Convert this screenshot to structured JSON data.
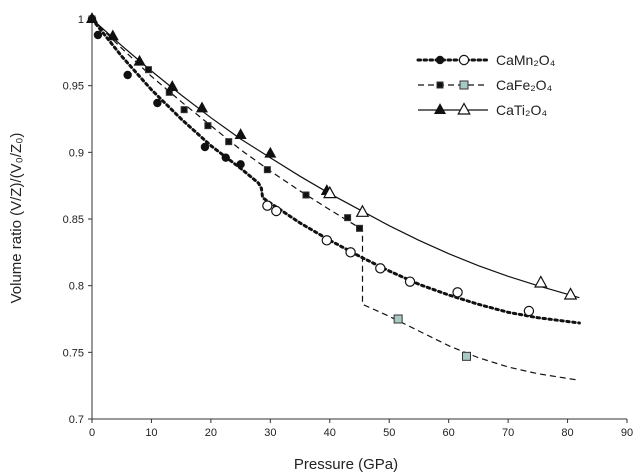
{
  "chart_data": {
    "type": "scatter",
    "title": "",
    "xlabel": "Pressure  (GPa)",
    "ylabel": "Volume ratio  (V/Z)/(V₀/Z₀)",
    "xlim": [
      0,
      90
    ],
    "ylim": [
      0.7,
      1.0
    ],
    "xticks": [
      0,
      10,
      20,
      30,
      40,
      50,
      60,
      70,
      80,
      90
    ],
    "yticks": [
      0.7,
      0.75,
      0.8,
      0.85,
      0.9,
      0.95,
      1.0
    ],
    "xtick_labels": [
      "0",
      "10",
      "20",
      "30",
      "40",
      "50",
      "60",
      "70",
      "80",
      "90"
    ],
    "ytick_labels": [
      "0.7",
      "0.75",
      "0.8",
      "0.85",
      "0.9",
      "0.95",
      "1"
    ],
    "grid": false,
    "legend_position": "top-right",
    "series": [
      {
        "name": "CaMn₂O₄",
        "color": "#111111",
        "fit_style": "dotted-thick",
        "points_low_phase": [
          [
            0,
            1.0
          ],
          [
            1,
            0.988
          ],
          [
            6,
            0.958
          ],
          [
            11,
            0.937
          ],
          [
            19,
            0.904
          ],
          [
            22.5,
            0.896
          ],
          [
            25,
            0.891
          ]
        ],
        "points_high_phase": [
          [
            29.5,
            0.86
          ],
          [
            31,
            0.856
          ],
          [
            39.5,
            0.834
          ],
          [
            43.5,
            0.825
          ],
          [
            48.5,
            0.813
          ],
          [
            53.5,
            0.803
          ],
          [
            61.5,
            0.795
          ],
          [
            73.5,
            0.781
          ]
        ],
        "fit": [
          [
            0,
            1.0
          ],
          [
            5,
            0.972
          ],
          [
            10,
            0.947
          ],
          [
            15,
            0.925
          ],
          [
            20,
            0.905
          ],
          [
            25,
            0.888
          ],
          [
            28,
            0.877
          ],
          [
            28.5,
            0.873
          ],
          [
            28.7,
            0.866
          ],
          [
            30,
            0.862
          ],
          [
            35,
            0.847
          ],
          [
            40,
            0.834
          ],
          [
            45,
            0.822
          ],
          [
            50,
            0.811
          ],
          [
            55,
            0.801
          ],
          [
            60,
            0.793
          ],
          [
            65,
            0.786
          ],
          [
            70,
            0.78
          ],
          [
            75,
            0.776
          ],
          [
            82,
            0.772
          ]
        ]
      },
      {
        "name": "CaFe₂O₄",
        "color": "#111111",
        "fit_style": "dashed",
        "marker_fill_high_phase": "#a9c9c5",
        "points_low_phase": [
          [
            0,
            1.0
          ],
          [
            9.5,
            0.962
          ],
          [
            13,
            0.945
          ],
          [
            15.5,
            0.932
          ],
          [
            19.5,
            0.92
          ],
          [
            23,
            0.908
          ],
          [
            29.5,
            0.887
          ],
          [
            36,
            0.868
          ],
          [
            43,
            0.851
          ],
          [
            45,
            0.843
          ]
        ],
        "points_high_phase": [
          [
            51.5,
            0.775
          ],
          [
            63,
            0.747
          ]
        ],
        "fit": [
          [
            0,
            1.0
          ],
          [
            5,
            0.978
          ],
          [
            10,
            0.957
          ],
          [
            15,
            0.938
          ],
          [
            20,
            0.92
          ],
          [
            25,
            0.902
          ],
          [
            30,
            0.886
          ],
          [
            35,
            0.871
          ],
          [
            40,
            0.857
          ],
          [
            45.5,
            0.842
          ],
          [
            45.5,
            0.786
          ],
          [
            50,
            0.777
          ],
          [
            55,
            0.766
          ],
          [
            60,
            0.755
          ],
          [
            65,
            0.746
          ],
          [
            70,
            0.739
          ],
          [
            75,
            0.734
          ],
          [
            82,
            0.729
          ]
        ]
      },
      {
        "name": "CaTi₂O₄",
        "color": "#111111",
        "fit_style": "solid",
        "points_low_phase": [
          [
            0,
            1.0
          ],
          [
            3.5,
            0.987
          ],
          [
            8,
            0.968
          ],
          [
            13.5,
            0.949
          ],
          [
            18.5,
            0.933
          ],
          [
            25,
            0.913
          ],
          [
            30,
            0.899
          ],
          [
            39.5,
            0.871
          ]
        ],
        "points_high_phase": [
          [
            40,
            0.869
          ],
          [
            45.5,
            0.855
          ],
          [
            75.5,
            0.802
          ],
          [
            80.5,
            0.793
          ]
        ],
        "fit": [
          [
            0,
            1.0
          ],
          [
            5,
            0.98
          ],
          [
            10,
            0.961
          ],
          [
            15,
            0.943
          ],
          [
            20,
            0.926
          ],
          [
            25,
            0.91
          ],
          [
            30,
            0.896
          ],
          [
            35,
            0.882
          ],
          [
            40,
            0.869
          ],
          [
            45,
            0.857
          ],
          [
            50,
            0.845
          ],
          [
            55,
            0.834
          ],
          [
            60,
            0.824
          ],
          [
            65,
            0.815
          ],
          [
            70,
            0.807
          ],
          [
            75,
            0.8
          ],
          [
            82,
            0.791
          ]
        ]
      }
    ]
  }
}
